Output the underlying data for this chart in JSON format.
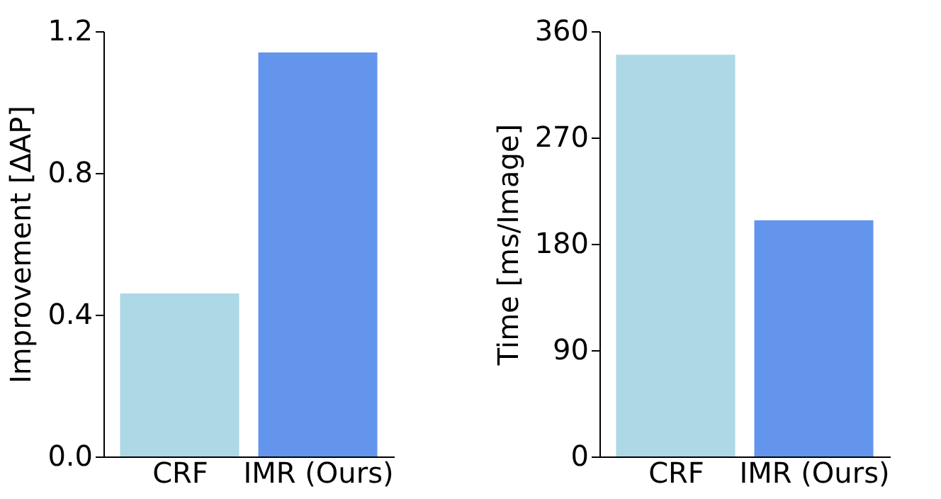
{
  "chart_data": [
    {
      "type": "bar",
      "ylabel": "Improvement [ΔAP]",
      "categories": [
        "CRF",
        "IMR (Ours)"
      ],
      "values": [
        0.46,
        1.14
      ],
      "colors": [
        "#add8e6",
        "#6495ed"
      ],
      "ylim": [
        0,
        1.2
      ],
      "yticks": [
        {
          "value": 0,
          "label": "0.0"
        },
        0.4,
        0.8,
        1.2
      ],
      "grid": false
    },
    {
      "type": "bar",
      "ylabel": "Time [ms/Image]",
      "categories": [
        "CRF",
        "IMR (Ours)"
      ],
      "values": [
        340,
        200
      ],
      "colors": [
        "#add8e6",
        "#6495ed"
      ],
      "ylim": [
        0,
        360
      ],
      "yticks": [
        0,
        90,
        180,
        270,
        360
      ],
      "grid": false
    }
  ]
}
